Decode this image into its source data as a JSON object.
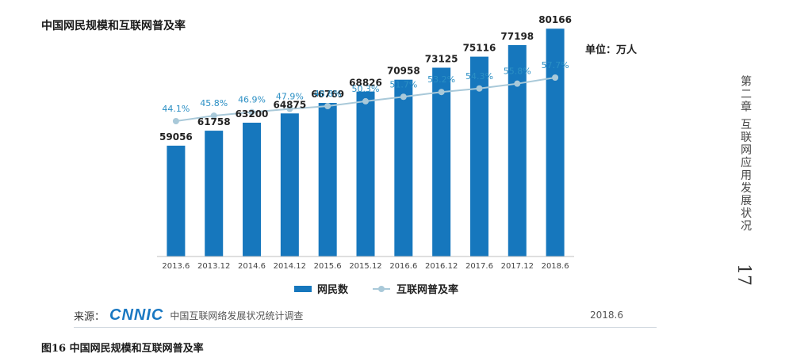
{
  "page": {
    "title": "中国网民规模和互联网普及率",
    "figure_caption": "图16  中国网民规模和互联网普及率",
    "side_chapter": "第二章  互联网应用发展状况",
    "page_number": "17",
    "source_prefix": "来源：",
    "source_logo": "CNNIC",
    "source_name": "中国互联网络发展状况统计调查",
    "source_date": "2018.6"
  },
  "chart_data": {
    "type": "bar",
    "unit_label": "单位：万人",
    "categories": [
      "2013.6",
      "2013.12",
      "2014.6",
      "2014.12",
      "2015.6",
      "2015.12",
      "2016.6",
      "2016.12",
      "2017.6",
      "2017.12",
      "2018.6"
    ],
    "series": [
      {
        "name": "网民数",
        "type": "bar",
        "color": "#1677bd",
        "values": [
          59056,
          61758,
          63200,
          64875,
          66769,
          68826,
          70958,
          73125,
          75116,
          77198,
          80166
        ],
        "labels": [
          "59056",
          "61758",
          "63200",
          "64875",
          "66769",
          "68826",
          "70958",
          "73125",
          "75116",
          "77198",
          "80166"
        ]
      },
      {
        "name": "互联网普及率",
        "type": "line",
        "color": "#a9c9d9",
        "values": [
          44.1,
          45.8,
          46.9,
          47.9,
          48.8,
          50.3,
          51.7,
          53.2,
          54.3,
          55.8,
          57.7
        ],
        "labels": [
          "44.1%",
          "45.8%",
          "46.9%",
          "47.9%",
          "48.8%",
          "50.3%",
          "51.7%",
          "53.2%",
          "54.3%",
          "55.8%",
          "57.7%"
        ]
      }
    ],
    "legend_position": "bottom",
    "grid": false
  }
}
